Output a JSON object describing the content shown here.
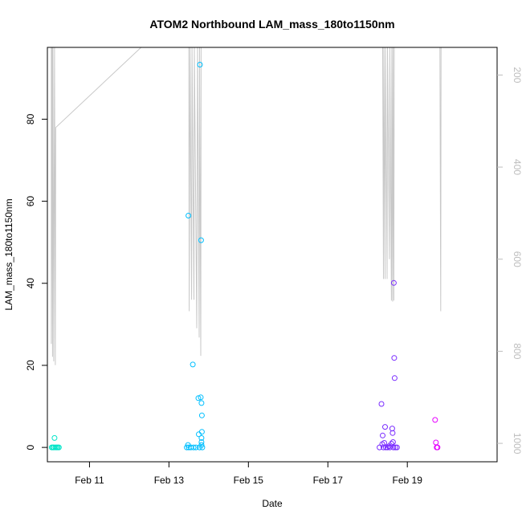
{
  "chart_data": {
    "type": "scatter",
    "title": "ATOM2 Northbound LAM_mass_180to1150nm",
    "xlabel": "Date",
    "ylabel": "LAM_mass_180to1150nm",
    "x_ticks": [
      "Feb 11",
      "Feb 13",
      "Feb 15",
      "Feb 17",
      "Feb 19"
    ],
    "x_tick_days": [
      11,
      13,
      15,
      17,
      19
    ],
    "xlim_days": [
      9.94,
      21.26
    ],
    "y_ticks": [
      0,
      20,
      40,
      60,
      80
    ],
    "ylim": [
      -3.5,
      97.5
    ],
    "y2_ticks": [
      200,
      400,
      600,
      800,
      1000
    ],
    "y2lim_reversed": [
      1040,
      140
    ],
    "grid": false,
    "marker_colors": [
      "#00e5c8",
      "#00e0e0",
      "#00bfff",
      "#0096ff",
      "#7a2cff",
      "#9b00ff",
      "#e600ff"
    ],
    "points": [
      {
        "day": 10.05,
        "v": 0.0,
        "c": "#00e5c8"
      },
      {
        "day": 10.08,
        "v": 0.0,
        "c": "#00e5c8"
      },
      {
        "day": 10.1,
        "v": 0.0,
        "c": "#00e5c8"
      },
      {
        "day": 10.12,
        "v": 2.3,
        "c": "#00e5c8"
      },
      {
        "day": 10.14,
        "v": 0.0,
        "c": "#00e5c8"
      },
      {
        "day": 10.17,
        "v": 0.0,
        "c": "#00e5c8"
      },
      {
        "day": 10.2,
        "v": 0.0,
        "c": "#00e5c8"
      },
      {
        "day": 10.23,
        "v": 0.0,
        "c": "#00e5c8"
      },
      {
        "day": 13.45,
        "v": 0.0,
        "c": "#00bfff"
      },
      {
        "day": 13.48,
        "v": 0.6,
        "c": "#00bfff"
      },
      {
        "day": 13.5,
        "v": 0.0,
        "c": "#00bfff"
      },
      {
        "day": 13.49,
        "v": 56.5,
        "c": "#00bfff"
      },
      {
        "day": 13.55,
        "v": 0.0,
        "c": "#00bfff"
      },
      {
        "day": 13.6,
        "v": 20.2,
        "c": "#00bfff"
      },
      {
        "day": 13.62,
        "v": 0.0,
        "c": "#00bfff"
      },
      {
        "day": 13.68,
        "v": 0.0,
        "c": "#00bfff"
      },
      {
        "day": 13.74,
        "v": 12.0,
        "c": "#00bfff"
      },
      {
        "day": 13.78,
        "v": 93.3,
        "c": "#00bfff"
      },
      {
        "day": 13.8,
        "v": 12.2,
        "c": "#00bfff"
      },
      {
        "day": 13.82,
        "v": 10.8,
        "c": "#00bfff"
      },
      {
        "day": 13.81,
        "v": 50.5,
        "c": "#00bfff"
      },
      {
        "day": 13.83,
        "v": 7.8,
        "c": "#00bfff"
      },
      {
        "day": 13.75,
        "v": 3.2,
        "c": "#00bfff"
      },
      {
        "day": 13.83,
        "v": 3.8,
        "c": "#00bfff"
      },
      {
        "day": 13.82,
        "v": 2.3,
        "c": "#00bfff"
      },
      {
        "day": 13.82,
        "v": 1.3,
        "c": "#00bfff"
      },
      {
        "day": 13.82,
        "v": 0.6,
        "c": "#00bfff"
      },
      {
        "day": 13.77,
        "v": 0.0,
        "c": "#00bfff"
      },
      {
        "day": 13.84,
        "v": 0.0,
        "c": "#00bfff"
      },
      {
        "day": 18.3,
        "v": 0.0,
        "c": "#7a2cff"
      },
      {
        "day": 18.35,
        "v": 10.6,
        "c": "#7a2cff"
      },
      {
        "day": 18.37,
        "v": 0.8,
        "c": "#7a2cff"
      },
      {
        "day": 18.38,
        "v": 2.9,
        "c": "#7a2cff"
      },
      {
        "day": 18.4,
        "v": 0.0,
        "c": "#7a2cff"
      },
      {
        "day": 18.42,
        "v": 1.1,
        "c": "#7a2cff"
      },
      {
        "day": 18.44,
        "v": 5.0,
        "c": "#7a2cff"
      },
      {
        "day": 18.46,
        "v": 0.0,
        "c": "#7a2cff"
      },
      {
        "day": 18.5,
        "v": 0.0,
        "c": "#7a2cff"
      },
      {
        "day": 18.54,
        "v": 0.3,
        "c": "#7a2cff"
      },
      {
        "day": 18.56,
        "v": 0.0,
        "c": "#7a2cff"
      },
      {
        "day": 18.6,
        "v": 0.9,
        "c": "#7a2cff"
      },
      {
        "day": 18.62,
        "v": 4.6,
        "c": "#7a2cff"
      },
      {
        "day": 18.63,
        "v": 3.5,
        "c": "#7a2cff"
      },
      {
        "day": 18.64,
        "v": 1.3,
        "c": "#7a2cff"
      },
      {
        "day": 18.65,
        "v": 0.0,
        "c": "#7a2cff"
      },
      {
        "day": 18.66,
        "v": 40.1,
        "c": "#7a2cff"
      },
      {
        "day": 18.67,
        "v": 21.8,
        "c": "#7a2cff"
      },
      {
        "day": 18.68,
        "v": 16.9,
        "c": "#7a2cff"
      },
      {
        "day": 18.7,
        "v": 0.0,
        "c": "#7a2cff"
      },
      {
        "day": 18.74,
        "v": 0.0,
        "c": "#7a2cff"
      },
      {
        "day": 19.7,
        "v": 6.7,
        "c": "#e600ff"
      },
      {
        "day": 19.72,
        "v": 1.2,
        "c": "#e600ff"
      },
      {
        "day": 19.74,
        "v": 0.0,
        "c": "#e600ff"
      },
      {
        "day": 19.76,
        "v": 0.0,
        "c": "#e600ff"
      }
    ],
    "secondary_line_color": "#c8c8c8",
    "secondary_series": [
      {
        "day": 10.04,
        "y2": 140
      },
      {
        "day": 10.04,
        "y2": 784
      },
      {
        "day": 10.06,
        "y2": 140
      },
      {
        "day": 10.07,
        "y2": 812
      },
      {
        "day": 10.08,
        "y2": 140
      },
      {
        "day": 10.1,
        "y2": 822
      },
      {
        "day": 10.12,
        "y2": 140
      },
      {
        "day": 10.14,
        "y2": 830
      },
      {
        "day": 10.15,
        "y2": 314
      },
      {
        "day": 12.3,
        "y2": 140
      },
      {
        "day": 13.5,
        "y2": 140
      },
      {
        "day": 13.51,
        "y2": 713
      },
      {
        "day": 13.53,
        "y2": 140
      },
      {
        "day": 13.57,
        "y2": 688
      },
      {
        "day": 13.58,
        "y2": 140
      },
      {
        "day": 13.63,
        "y2": 688
      },
      {
        "day": 13.64,
        "y2": 140
      },
      {
        "day": 13.7,
        "y2": 750
      },
      {
        "day": 13.72,
        "y2": 140
      },
      {
        "day": 13.76,
        "y2": 770
      },
      {
        "day": 13.77,
        "y2": 140
      },
      {
        "day": 13.8,
        "y2": 810
      },
      {
        "day": 13.81,
        "y2": 140
      },
      {
        "day": 18.38,
        "y2": 140
      },
      {
        "day": 18.4,
        "y2": 643
      },
      {
        "day": 18.41,
        "y2": 140
      },
      {
        "day": 18.44,
        "y2": 643
      },
      {
        "day": 18.45,
        "y2": 140
      },
      {
        "day": 18.49,
        "y2": 643
      },
      {
        "day": 18.5,
        "y2": 140
      },
      {
        "day": 18.55,
        "y2": 600
      },
      {
        "day": 18.56,
        "y2": 140
      },
      {
        "day": 18.6,
        "y2": 690
      },
      {
        "day": 18.61,
        "y2": 140
      },
      {
        "day": 18.63,
        "y2": 692
      },
      {
        "day": 18.64,
        "y2": 140
      },
      {
        "day": 18.66,
        "y2": 690
      },
      {
        "day": 18.67,
        "y2": 140
      },
      {
        "day": 18.7,
        "y2": 140
      },
      {
        "day": 19.82,
        "y2": 140
      },
      {
        "day": 19.84,
        "y2": 713
      },
      {
        "day": 19.85,
        "y2": 140
      }
    ]
  }
}
